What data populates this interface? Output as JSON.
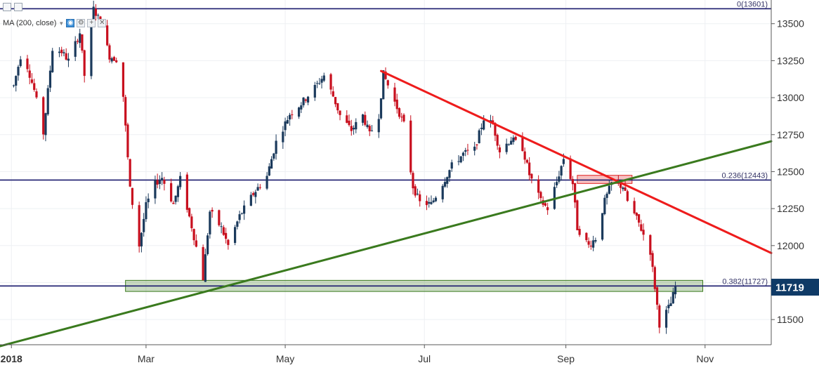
{
  "chart_data": {
    "type": "candlestick",
    "y_range": [
      11330,
      13660
    ],
    "x_range": [
      "2017-12-27",
      "2018-11-30"
    ],
    "x_ticks": [
      {
        "label": "2018",
        "date": "2018-01-01",
        "bold": true
      },
      {
        "label": "Mar",
        "date": "2018-03-01"
      },
      {
        "label": "May",
        "date": "2018-05-01"
      },
      {
        "label": "Jul",
        "date": "2018-07-01"
      },
      {
        "label": "Sep",
        "date": "2018-09-01"
      },
      {
        "label": "Nov",
        "date": "2018-11-01"
      }
    ],
    "y_ticks": [
      11500,
      11750,
      12000,
      12250,
      12500,
      12750,
      13000,
      13250,
      13500
    ],
    "current_price": 11719,
    "indicator_label": "MA (200, close)",
    "colors": {
      "up": "#1b3a5c",
      "down": "#c80f1e",
      "fib": "#1a1a6e",
      "trend_down": "#ee1c1c",
      "trend_up": "#3a7a1e",
      "badge": "#0f3a66"
    },
    "fib_levels": [
      {
        "label": "0(13601)",
        "value": 13601
      },
      {
        "label": "0.236(12443)",
        "value": 12443
      },
      {
        "label": "0.382(11727)",
        "value": 11727
      }
    ],
    "trendlines": [
      {
        "name": "resistance",
        "color": "#ee1c1c",
        "start": [
          "2018-06-12",
          13180
        ],
        "end": [
          "2018-11-30",
          11950
        ]
      },
      {
        "name": "support",
        "color": "#3a7a1e",
        "start": [
          "2017-12-27",
          11320
        ],
        "end": [
          "2018-11-30",
          12705
        ]
      }
    ],
    "zones": [
      {
        "name": "support-zone",
        "from": "2018-02-20",
        "to": "2018-10-31",
        "low": 11690,
        "high": 11765,
        "color": "#3a7a1e"
      },
      {
        "name": "resistance-zone",
        "from": "2018-09-06",
        "to": "2018-09-30",
        "low": 12420,
        "high": 12475,
        "color": "#e02020"
      }
    ],
    "anchors": [
      [
        "2018-01-02",
        13080
      ],
      [
        "2018-01-05",
        13280
      ],
      [
        "2018-01-08",
        13210
      ],
      [
        "2018-01-11",
        13050
      ],
      [
        "2018-01-15",
        12760
      ],
      [
        "2018-01-19",
        13330
      ],
      [
        "2018-01-23",
        13310
      ],
      [
        "2018-01-26",
        13250
      ],
      [
        "2018-01-31",
        13440
      ],
      [
        "2018-02-02",
        13150
      ],
      [
        "2018-02-06",
        13600
      ],
      [
        "2018-02-09",
        13510
      ],
      [
        "2018-02-13",
        13280
      ],
      [
        "2018-02-16",
        13260
      ],
      [
        "2018-02-19",
        13010
      ],
      [
        "2018-02-22",
        12380
      ],
      [
        "2018-02-26",
        12000
      ],
      [
        "2018-03-01",
        12270
      ],
      [
        "2018-03-05",
        12420
      ],
      [
        "2018-03-08",
        12460
      ],
      [
        "2018-03-13",
        12280
      ],
      [
        "2018-03-16",
        12450
      ],
      [
        "2018-03-21",
        12130
      ],
      [
        "2018-03-26",
        11780
      ],
      [
        "2018-03-29",
        12230
      ],
      [
        "2018-04-03",
        12120
      ],
      [
        "2018-04-06",
        12000
      ],
      [
        "2018-04-11",
        12200
      ],
      [
        "2018-04-17",
        12350
      ],
      [
        "2018-04-23",
        12470
      ],
      [
        "2018-04-27",
        12700
      ],
      [
        "2018-05-03",
        12890
      ],
      [
        "2018-05-08",
        12960
      ],
      [
        "2018-05-14",
        13070
      ],
      [
        "2018-05-18",
        13150
      ],
      [
        "2018-05-22",
        13010
      ],
      [
        "2018-05-25",
        12880
      ],
      [
        "2018-05-30",
        12780
      ],
      [
        "2018-06-04",
        12880
      ],
      [
        "2018-06-07",
        12750
      ],
      [
        "2018-06-11",
        12880
      ],
      [
        "2018-06-13",
        13160
      ],
      [
        "2018-06-18",
        12970
      ],
      [
        "2018-06-22",
        12820
      ],
      [
        "2018-06-26",
        12400
      ],
      [
        "2018-06-29",
        12290
      ],
      [
        "2018-07-04",
        12280
      ],
      [
        "2018-07-09",
        12420
      ],
      [
        "2018-07-13",
        12540
      ],
      [
        "2018-07-18",
        12620
      ],
      [
        "2018-07-23",
        12650
      ],
      [
        "2018-07-27",
        12860
      ],
      [
        "2018-07-31",
        12820
      ],
      [
        "2018-08-03",
        12640
      ],
      [
        "2018-08-08",
        12720
      ],
      [
        "2018-08-13",
        12660
      ],
      [
        "2018-08-16",
        12480
      ],
      [
        "2018-08-21",
        12300
      ],
      [
        "2018-08-24",
        12250
      ],
      [
        "2018-08-28",
        12430
      ],
      [
        "2018-08-31",
        12590
      ],
      [
        "2018-09-04",
        12420
      ],
      [
        "2018-09-06",
        12120
      ],
      [
        "2018-09-11",
        12000
      ],
      [
        "2018-09-14",
        12050
      ],
      [
        "2018-09-18",
        12300
      ],
      [
        "2018-09-21",
        12420
      ],
      [
        "2018-09-26",
        12400
      ],
      [
        "2018-09-28",
        12300
      ],
      [
        "2018-10-03",
        12150
      ],
      [
        "2018-10-08",
        11960
      ],
      [
        "2018-10-10",
        11720
      ],
      [
        "2018-10-12",
        11470
      ],
      [
        "2018-10-15",
        11550
      ],
      [
        "2018-10-17",
        11610
      ],
      [
        "2018-10-19",
        11719
      ]
    ]
  }
}
